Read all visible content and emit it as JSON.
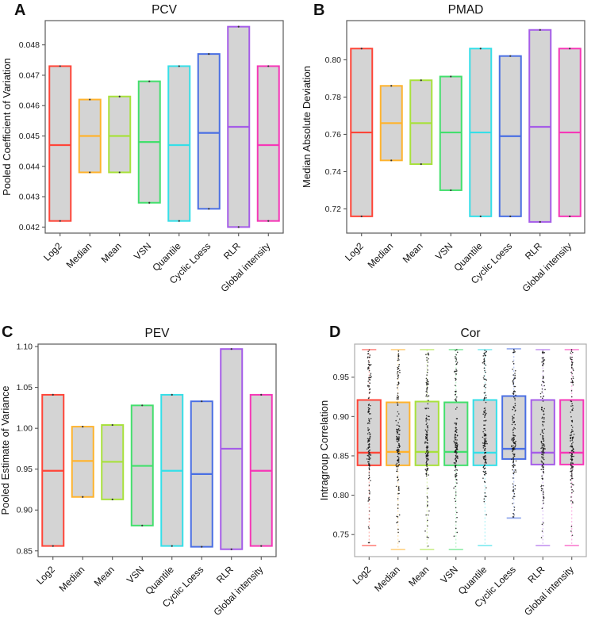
{
  "figure": {
    "background": "#ffffff",
    "box_fill": "#d4d4d4",
    "frame_color": "#5a5a5a",
    "frame_color_d": "#adadad",
    "point_color": "#161616"
  },
  "categories": [
    "Log2",
    "Median",
    "Mean",
    "VSN",
    "Quantile",
    "Cyclic Loess",
    "RLR",
    "Global intensity"
  ],
  "palette": [
    "#ff4538",
    "#ffb32e",
    "#a8e13c",
    "#43df6d",
    "#35dfe8",
    "#4a6fe3",
    "#a55ce8",
    "#f637b7"
  ],
  "chart_data": [
    {
      "panel_letter": "A",
      "type": "range-box",
      "title": "PCV",
      "ylabel": "Pooled Coefficient of Variation",
      "ylim": [
        0.0418,
        0.0488
      ],
      "grid": false,
      "yticks": [
        {
          "v": 0.042,
          "label": "0.042"
        },
        {
          "v": 0.043,
          "label": "0.043"
        },
        {
          "v": 0.044,
          "label": "0.044"
        },
        {
          "v": 0.045,
          "label": "0.045"
        },
        {
          "v": 0.046,
          "label": "0.046"
        },
        {
          "v": 0.047,
          "label": "0.047"
        },
        {
          "v": 0.048,
          "label": "0.048"
        }
      ],
      "boxes": [
        {
          "category": "Log2",
          "min": 0.0422,
          "max": 0.0473,
          "median": 0.0447
        },
        {
          "category": "Median",
          "min": 0.0438,
          "max": 0.0462,
          "median": 0.045
        },
        {
          "category": "Mean",
          "min": 0.0438,
          "max": 0.0463,
          "median": 0.045
        },
        {
          "category": "VSN",
          "min": 0.0428,
          "max": 0.0468,
          "median": 0.0448
        },
        {
          "category": "Quantile",
          "min": 0.0422,
          "max": 0.0473,
          "median": 0.0447
        },
        {
          "category": "Cyclic Loess",
          "min": 0.0426,
          "max": 0.0477,
          "median": 0.0451
        },
        {
          "category": "RLR",
          "min": 0.042,
          "max": 0.0486,
          "median": 0.0453
        },
        {
          "category": "Global intensity",
          "min": 0.0422,
          "max": 0.0473,
          "median": 0.0447
        }
      ]
    },
    {
      "panel_letter": "B",
      "type": "range-box",
      "title": "PMAD",
      "ylabel": "Median Absolute Deviation",
      "ylim": [
        0.707,
        0.821
      ],
      "grid": false,
      "yticks": [
        {
          "v": 0.72,
          "label": "0.72"
        },
        {
          "v": 0.74,
          "label": "0.74"
        },
        {
          "v": 0.76,
          "label": "0.76"
        },
        {
          "v": 0.78,
          "label": "0.78"
        },
        {
          "v": 0.8,
          "label": "0.80"
        }
      ],
      "boxes": [
        {
          "category": "Log2",
          "min": 0.716,
          "max": 0.806,
          "median": 0.761
        },
        {
          "category": "Median",
          "min": 0.746,
          "max": 0.786,
          "median": 0.766
        },
        {
          "category": "Mean",
          "min": 0.744,
          "max": 0.789,
          "median": 0.766
        },
        {
          "category": "VSN",
          "min": 0.73,
          "max": 0.791,
          "median": 0.761
        },
        {
          "category": "Quantile",
          "min": 0.716,
          "max": 0.806,
          "median": 0.761
        },
        {
          "category": "Cyclic Loess",
          "min": 0.716,
          "max": 0.802,
          "median": 0.759
        },
        {
          "category": "RLR",
          "min": 0.713,
          "max": 0.816,
          "median": 0.764
        },
        {
          "category": "Global intensity",
          "min": 0.716,
          "max": 0.806,
          "median": 0.761
        }
      ]
    },
    {
      "panel_letter": "C",
      "type": "range-box",
      "title": "PEV",
      "ylabel": "Pooled Estimate of Variance",
      "ylim": [
        0.843,
        1.103
      ],
      "grid": false,
      "yticks": [
        {
          "v": 0.85,
          "label": "0.85"
        },
        {
          "v": 0.9,
          "label": "0.90"
        },
        {
          "v": 0.95,
          "label": "0.95"
        },
        {
          "v": 1.0,
          "label": "1.00"
        },
        {
          "v": 1.05,
          "label": "1.05"
        },
        {
          "v": 1.1,
          "label": "1.10"
        }
      ],
      "boxes": [
        {
          "category": "Log2",
          "min": 0.856,
          "max": 1.041,
          "median": 0.948
        },
        {
          "category": "Median",
          "min": 0.916,
          "max": 1.002,
          "median": 0.96
        },
        {
          "category": "Mean",
          "min": 0.913,
          "max": 1.004,
          "median": 0.959
        },
        {
          "category": "VSN",
          "min": 0.881,
          "max": 1.028,
          "median": 0.954
        },
        {
          "category": "Quantile",
          "min": 0.856,
          "max": 1.041,
          "median": 0.948
        },
        {
          "category": "Cyclic Loess",
          "min": 0.855,
          "max": 1.033,
          "median": 0.944
        },
        {
          "category": "RLR",
          "min": 0.852,
          "max": 1.097,
          "median": 0.975
        },
        {
          "category": "Global intensity",
          "min": 0.856,
          "max": 1.041,
          "median": 0.948
        }
      ]
    },
    {
      "panel_letter": "D",
      "type": "boxplot-scatter",
      "title": "Cor",
      "ylabel": "Intragroup Correlation",
      "ylim": [
        0.722,
        0.992
      ],
      "grid": false,
      "point_count": 150,
      "yticks": [
        {
          "v": 0.75,
          "label": "0.75"
        },
        {
          "v": 0.8,
          "label": "0.80"
        },
        {
          "v": 0.85,
          "label": "0.85"
        },
        {
          "v": 0.9,
          "label": "0.90"
        },
        {
          "v": 0.95,
          "label": "0.95"
        }
      ],
      "boxes": [
        {
          "category": "Log2",
          "q1": 0.838,
          "q3": 0.921,
          "median": 0.854,
          "whisker_low": 0.736,
          "whisker_high": 0.985
        },
        {
          "category": "Median",
          "q1": 0.838,
          "q3": 0.918,
          "median": 0.855,
          "whisker_low": 0.731,
          "whisker_high": 0.985
        },
        {
          "category": "Mean",
          "q1": 0.838,
          "q3": 0.919,
          "median": 0.855,
          "whisker_low": 0.731,
          "whisker_high": 0.985
        },
        {
          "category": "VSN",
          "q1": 0.838,
          "q3": 0.918,
          "median": 0.855,
          "whisker_low": 0.731,
          "whisker_high": 0.985
        },
        {
          "category": "Quantile",
          "q1": 0.838,
          "q3": 0.921,
          "median": 0.854,
          "whisker_low": 0.736,
          "whisker_high": 0.985
        },
        {
          "category": "Cyclic Loess",
          "q1": 0.846,
          "q3": 0.926,
          "median": 0.859,
          "whisker_low": 0.771,
          "whisker_high": 0.986
        },
        {
          "category": "RLR",
          "q1": 0.839,
          "q3": 0.921,
          "median": 0.854,
          "whisker_low": 0.736,
          "whisker_high": 0.985
        },
        {
          "category": "Global intensity",
          "q1": 0.839,
          "q3": 0.921,
          "median": 0.854,
          "whisker_low": 0.736,
          "whisker_high": 0.985
        }
      ]
    }
  ]
}
